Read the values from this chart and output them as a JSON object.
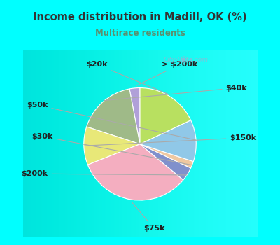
{
  "title": "Income distribution in Madill, OK (%)",
  "subtitle": "Multirace residents",
  "title_color": "#333333",
  "subtitle_color": "#5a9070",
  "bg_cyan": "#00ffff",
  "bg_box": "#f0faf0",
  "labels": [
    "> $200k",
    "$40k",
    "$150k",
    "$75k",
    "$200k",
    "$30k",
    "$50k",
    "$20k"
  ],
  "values": [
    3,
    17,
    11,
    33,
    4,
    2,
    12,
    18
  ],
  "colors": [
    "#b0a0d8",
    "#9fba88",
    "#e8e878",
    "#f4aec0",
    "#8090cc",
    "#f0c8a0",
    "#90c8e8",
    "#b8e060"
  ],
  "startangle": 90,
  "label_fontsize": 8,
  "watermark": "City-Data.com"
}
